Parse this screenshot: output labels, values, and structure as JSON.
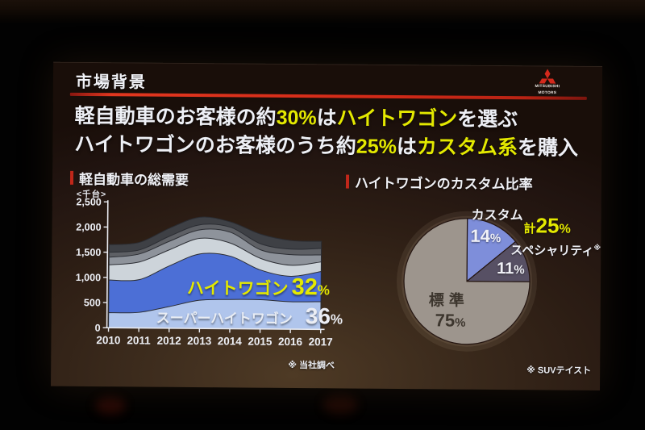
{
  "slide": {
    "kicker": "市場背景",
    "headline": {
      "l1_a": "軽自動車のお客様の約",
      "l1_b": "30%",
      "l1_c": "は",
      "l1_d": "ハイトワゴン",
      "l1_e": "を選ぶ",
      "l2_a": "ハイトワゴンのお客様のうち約",
      "l2_b": "25%",
      "l2_c": "は",
      "l2_d": "カスタム系",
      "l2_e": "を購入"
    },
    "logo": {
      "brand_line1": "MITSUBISHI",
      "brand_line2": "MOTORS"
    },
    "colors": {
      "accent_red": "#d22a18",
      "highlight_yellow": "#e4e900",
      "text_white": "#eef0f6"
    }
  },
  "chart_data": [
    {
      "type": "area",
      "stacked": true,
      "title": "軽自動車の総需要",
      "unit_label": "<千台>",
      "x_labels": [
        "2010",
        "2011",
        "2012",
        "2013",
        "2014",
        "2015",
        "2016",
        "2017"
      ],
      "ylim": [
        0,
        2500
      ],
      "yticks": [
        0,
        500,
        1000,
        1500,
        2000,
        2500
      ],
      "ytick_labels": [
        "0",
        "500",
        "1,000",
        "1,500",
        "2,000",
        "2,500"
      ],
      "series": [
        {
          "id": "super-height-wagon",
          "label": "スーパーハイトワゴン",
          "share": {
            "num": "36",
            "sign": "%"
          },
          "color": "#b0c5ec",
          "cumulative_top": [
            300,
            310,
            430,
            560,
            580,
            580,
            545,
            550
          ]
        },
        {
          "id": "height-wagon",
          "label": "ハイトワゴン",
          "share": {
            "num": "32",
            "sign": "%"
          },
          "color": "#4c6fd6",
          "cumulative_top": [
            950,
            960,
            1240,
            1480,
            1440,
            1170,
            1050,
            1150
          ]
        },
        {
          "id": "other-a",
          "label": "",
          "color": "#cdd4da",
          "cumulative_top": [
            1250,
            1310,
            1560,
            1790,
            1700,
            1400,
            1270,
            1340
          ]
        },
        {
          "id": "other-b",
          "label": "",
          "color": "#8e939b",
          "cumulative_top": [
            1400,
            1470,
            1730,
            1960,
            1915,
            1570,
            1480,
            1480
          ]
        },
        {
          "id": "other-c",
          "label": "",
          "color": "#5e6065",
          "cumulative_top": [
            1500,
            1550,
            1830,
            2060,
            2015,
            1690,
            1590,
            1610
          ]
        },
        {
          "id": "other-d",
          "label": "",
          "color": "#3e4045",
          "cumulative_top": [
            1650,
            1700,
            1990,
            2210,
            2120,
            1880,
            1760,
            1750
          ]
        }
      ],
      "footnote": "※ 当社調べ"
    },
    {
      "type": "pie",
      "title": "ハイトワゴンのカスタム比率",
      "slices": [
        {
          "label": "カスタム",
          "value": 14,
          "pct": {
            "num": "14",
            "sign": "%"
          },
          "color": "#7e8eda"
        },
        {
          "label": "スペシャリティ",
          "label_note": "※",
          "value": 11,
          "pct": {
            "num": "11",
            "sign": "%"
          },
          "color": "#575064"
        },
        {
          "label": "標準",
          "value": 75,
          "pct": {
            "num": "75",
            "sign": "%"
          },
          "color": "#9d958d"
        }
      ],
      "total_prefix": "計",
      "total_value": {
        "num": "25",
        "sign": "%"
      },
      "footnote": "※ SUVテイスト"
    }
  ]
}
